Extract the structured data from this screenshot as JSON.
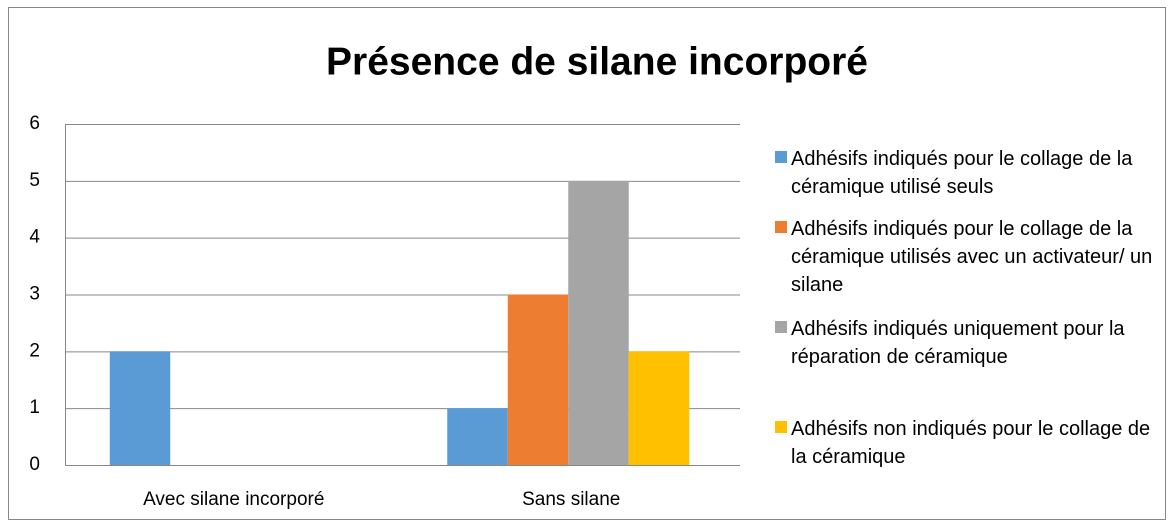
{
  "chart_data": {
    "type": "bar",
    "title": "Présence de silane incorporé",
    "categories": [
      "Avec silane incorporé",
      "Sans silane"
    ],
    "series": [
      {
        "name": "Adhésifs indiqués pour le collage de la céramique utilisé seuls",
        "color": "#5b9bd5",
        "values": [
          2,
          1
        ]
      },
      {
        "name": "Adhésifs indiqués pour le collage de la céramique utilisés avec un activateur/ un silane",
        "color": "#ed7d31",
        "values": [
          0,
          3
        ]
      },
      {
        "name": "Adhésifs indiqués uniquement pour la réparation de céramique",
        "color": "#a5a5a5",
        "values": [
          0,
          5
        ]
      },
      {
        "name": "Adhésifs non indiqués pour le collage de la céramique",
        "color": "#ffc000",
        "values": [
          0,
          2
        ]
      }
    ],
    "ylim": [
      0,
      6
    ],
    "yticks": [
      0,
      1,
      2,
      3,
      4,
      5,
      6
    ],
    "grid": true,
    "legend": "right"
  }
}
